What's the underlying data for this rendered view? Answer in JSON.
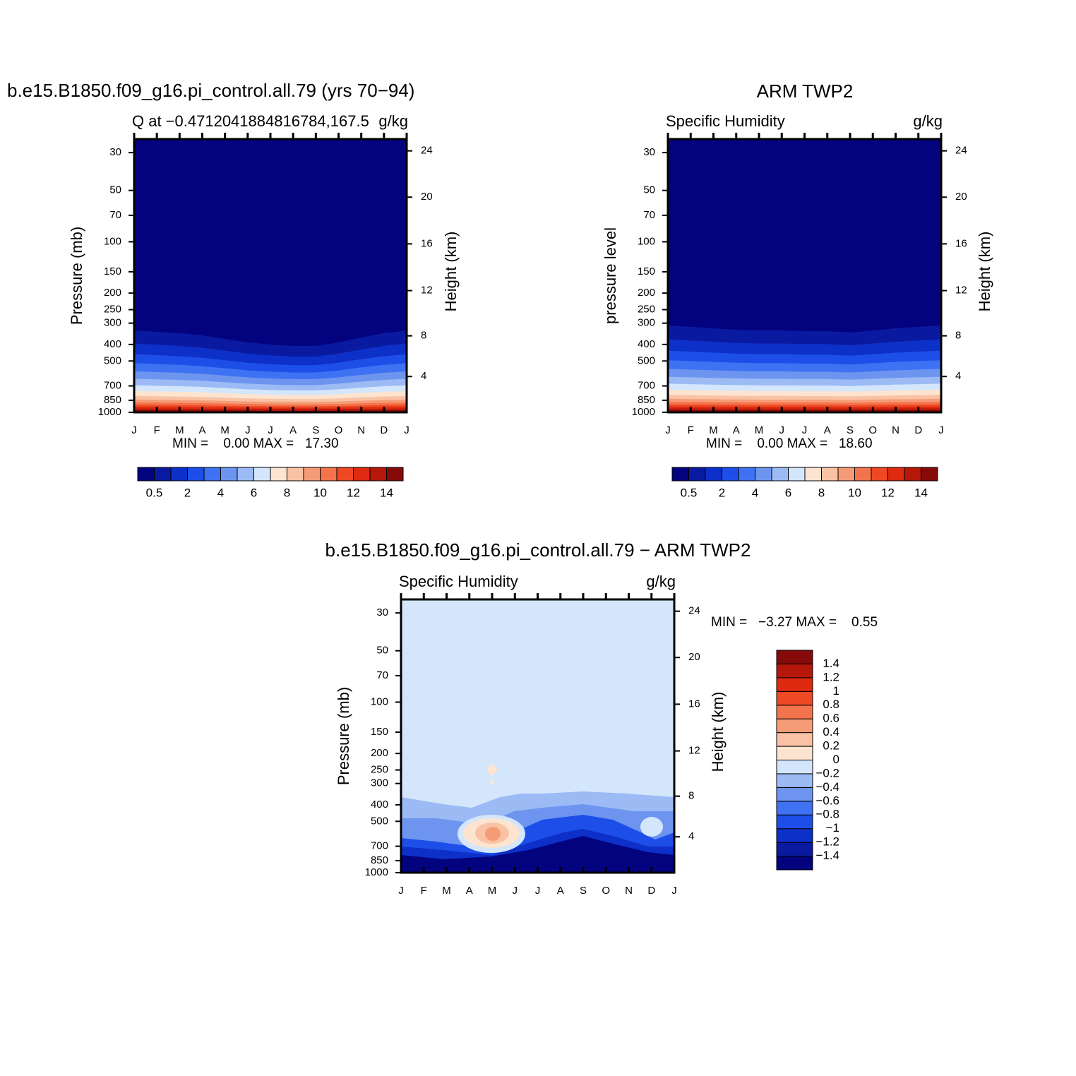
{
  "chart_data": [
    {
      "type": "contour",
      "title": "b.e15.B1850.f09_g16.pi_control.all.79 (yrs 70−94)",
      "subtitle_left": "Q at −0.4712041884816784,167.5",
      "subtitle_right": "g/kg",
      "ylabel": "Pressure (mb)",
      "y2label": "Height (km)",
      "categories": [
        "J",
        "F",
        "M",
        "A",
        "M",
        "J",
        "J",
        "A",
        "S",
        "O",
        "N",
        "D",
        "J"
      ],
      "ylim": [
        1000,
        25
      ],
      "log_y": true,
      "yticks": [
        30,
        50,
        70,
        100,
        150,
        200,
        250,
        300,
        400,
        500,
        700,
        850,
        1000
      ],
      "y2ticks": [
        4,
        8,
        12,
        16,
        20,
        24
      ],
      "min_max": "MIN =    0.00 MAX =   17.30",
      "colorbar": {
        "orientation": "horizontal",
        "colors": [
          "#03037f",
          "#0a1aa0",
          "#0d30c8",
          "#1d4fe8",
          "#3e72f2",
          "#6d95f0",
          "#9cbaf4",
          "#d3e6fb",
          "#fde4d0",
          "#f9c2a4",
          "#f59c77",
          "#f3734c",
          "#ef4824",
          "#dd2a10",
          "#b5180a",
          "#860a0a"
        ],
        "levels": [
          0.5,
          1,
          2,
          3,
          4,
          5,
          6,
          7,
          8,
          9,
          10,
          11,
          12,
          13,
          14
        ],
        "ticks": [
          0.5,
          2,
          4,
          6,
          8,
          10,
          12,
          14
        ]
      }
    },
    {
      "type": "contour",
      "title": "ARM TWP2",
      "subtitle_left": "Specific Humidity",
      "subtitle_right": "g/kg",
      "ylabel": "pressure level",
      "y2label": "Height (km)",
      "categories": [
        "J",
        "F",
        "M",
        "A",
        "M",
        "J",
        "J",
        "A",
        "S",
        "O",
        "N",
        "D",
        "J"
      ],
      "ylim": [
        1000,
        25
      ],
      "log_y": true,
      "yticks": [
        30,
        50,
        70,
        100,
        150,
        200,
        250,
        300,
        400,
        500,
        700,
        850,
        1000
      ],
      "y2ticks": [
        4,
        8,
        12,
        16,
        20,
        24
      ],
      "min_max": "MIN =    0.00 MAX =   18.60",
      "colorbar": {
        "orientation": "horizontal",
        "colors": [
          "#03037f",
          "#0a1aa0",
          "#0d30c8",
          "#1d4fe8",
          "#3e72f2",
          "#6d95f0",
          "#9cbaf4",
          "#d3e6fb",
          "#fde4d0",
          "#f9c2a4",
          "#f59c77",
          "#f3734c",
          "#ef4824",
          "#dd2a10",
          "#b5180a",
          "#860a0a"
        ],
        "levels": [
          0.5,
          1,
          2,
          3,
          4,
          5,
          6,
          7,
          8,
          9,
          10,
          11,
          12,
          13,
          14
        ],
        "ticks": [
          0.5,
          2,
          4,
          6,
          8,
          10,
          12,
          14
        ]
      }
    },
    {
      "type": "contour-diff",
      "title": "b.e15.B1850.f09_g16.pi_control.all.79 − ARM TWP2",
      "subtitle_left": "Specific Humidity",
      "subtitle_right": "g/kg",
      "ylabel": "Pressure (mb)",
      "y2label": "Height (km)",
      "categories": [
        "J",
        "F",
        "M",
        "A",
        "M",
        "J",
        "J",
        "A",
        "S",
        "O",
        "N",
        "D",
        "J"
      ],
      "ylim": [
        1000,
        25
      ],
      "log_y": true,
      "yticks": [
        30,
        50,
        70,
        100,
        150,
        200,
        250,
        300,
        400,
        500,
        700,
        850,
        1000
      ],
      "y2ticks": [
        4,
        8,
        12,
        16,
        20,
        24
      ],
      "min_max": "MIN =   −3.27 MAX =    0.55",
      "colorbar": {
        "orientation": "vertical",
        "colors": [
          "#03037f",
          "#0a1aa0",
          "#0d30c8",
          "#1d4fe8",
          "#3e72f2",
          "#6d95f0",
          "#9cbaf4",
          "#d3e6fb",
          "#fde4d0",
          "#f9c2a4",
          "#f59c77",
          "#f3734c",
          "#ef4824",
          "#dd2a10",
          "#b5180a",
          "#860a0a"
        ],
        "levels": [
          -1.4,
          -1.2,
          -1,
          -0.8,
          -0.6,
          -0.4,
          -0.2,
          0,
          0.2,
          0.4,
          0.6,
          0.8,
          1,
          1.2,
          1.4
        ],
        "ticks": [
          {
            "value": -1.4,
            "label": "−1.4"
          },
          {
            "value": -1.2,
            "label": "−1.2"
          },
          {
            "value": -1,
            "label": "−1"
          },
          {
            "value": -0.8,
            "label": "−0.8"
          },
          {
            "value": -0.6,
            "label": "−0.6"
          },
          {
            "value": -0.4,
            "label": "−0.4"
          },
          {
            "value": -0.2,
            "label": "−0.2"
          },
          0,
          0.2,
          0.4,
          0.6,
          0.8,
          1,
          1.2,
          1.4
        ]
      }
    }
  ]
}
